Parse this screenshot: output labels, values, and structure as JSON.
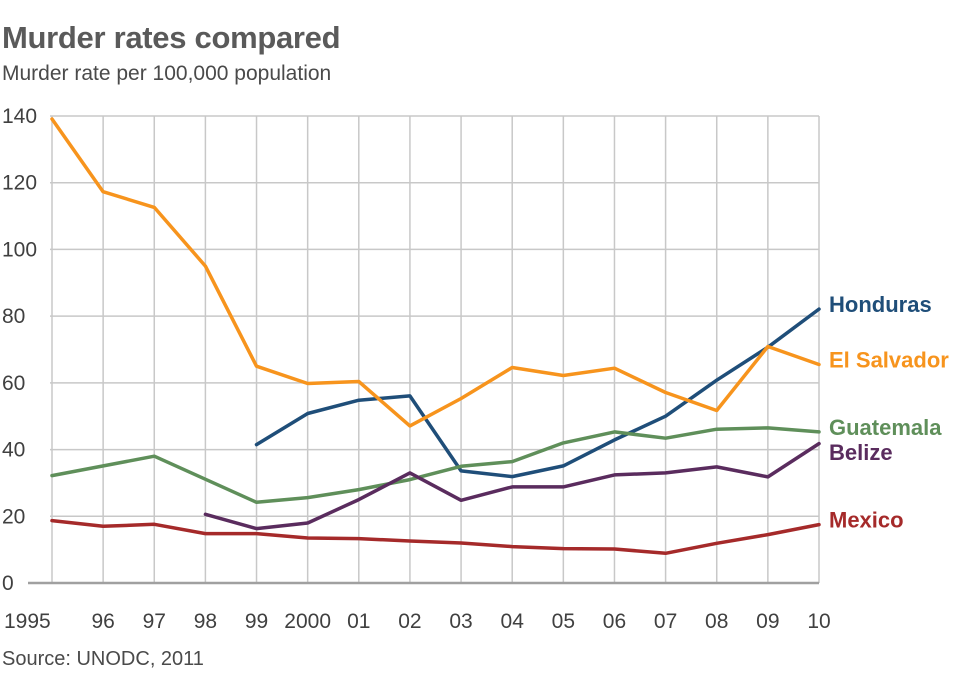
{
  "title": "Murder rates compared",
  "subtitle": "Murder rate per 100,000 population",
  "source": "Source: UNODC, 2011",
  "chart_data": {
    "type": "line",
    "x": [
      1995,
      1996,
      1997,
      1998,
      1999,
      2000,
      2001,
      2002,
      2003,
      2004,
      2005,
      2006,
      2007,
      2008,
      2009,
      2010
    ],
    "x_tick_labels": [
      "1995",
      "96",
      "97",
      "98",
      "99",
      "2000",
      "01",
      "02",
      "03",
      "04",
      "05",
      "06",
      "07",
      "08",
      "09",
      "10"
    ],
    "y_ticks": [
      0,
      20,
      40,
      60,
      80,
      100,
      120,
      140
    ],
    "ylim": [
      0,
      140
    ],
    "grid": true,
    "legend": "right-end labels",
    "series": [
      {
        "name": "Honduras",
        "color": "#1f4e79",
        "values": [
          null,
          null,
          null,
          null,
          41.5,
          50.8,
          54.8,
          56.1,
          33.6,
          31.9,
          35.1,
          42.9,
          50.0,
          60.8,
          70.7,
          82.1
        ]
      },
      {
        "name": "El Salvador",
        "color": "#f7941d",
        "values": [
          139.1,
          117.3,
          112.6,
          95.0,
          65.0,
          59.8,
          60.4,
          47.1,
          55.3,
          64.6,
          62.2,
          64.4,
          57.1,
          51.7,
          70.9,
          65.5
        ]
      },
      {
        "name": "Guatemala",
        "color": "#5f8f5a",
        "values": [
          32.2,
          null,
          38.0,
          null,
          24.2,
          25.6,
          28.0,
          31.0,
          35.0,
          36.4,
          42.0,
          45.3,
          43.4,
          46.1,
          46.5,
          45.3
        ]
      },
      {
        "name": "Belize",
        "color": "#5a2c5e",
        "values": [
          null,
          null,
          null,
          20.6,
          16.3,
          18.0,
          25.0,
          33.0,
          24.8,
          28.8,
          28.8,
          32.4,
          33.0,
          34.8,
          31.8,
          41.8
        ]
      },
      {
        "name": "Mexico",
        "color": "#a52a2a",
        "values": [
          18.7,
          17.0,
          17.6,
          14.8,
          14.8,
          13.5,
          13.3,
          12.6,
          12.0,
          10.9,
          10.3,
          10.2,
          8.9,
          11.9,
          14.5,
          17.5
        ]
      }
    ]
  }
}
